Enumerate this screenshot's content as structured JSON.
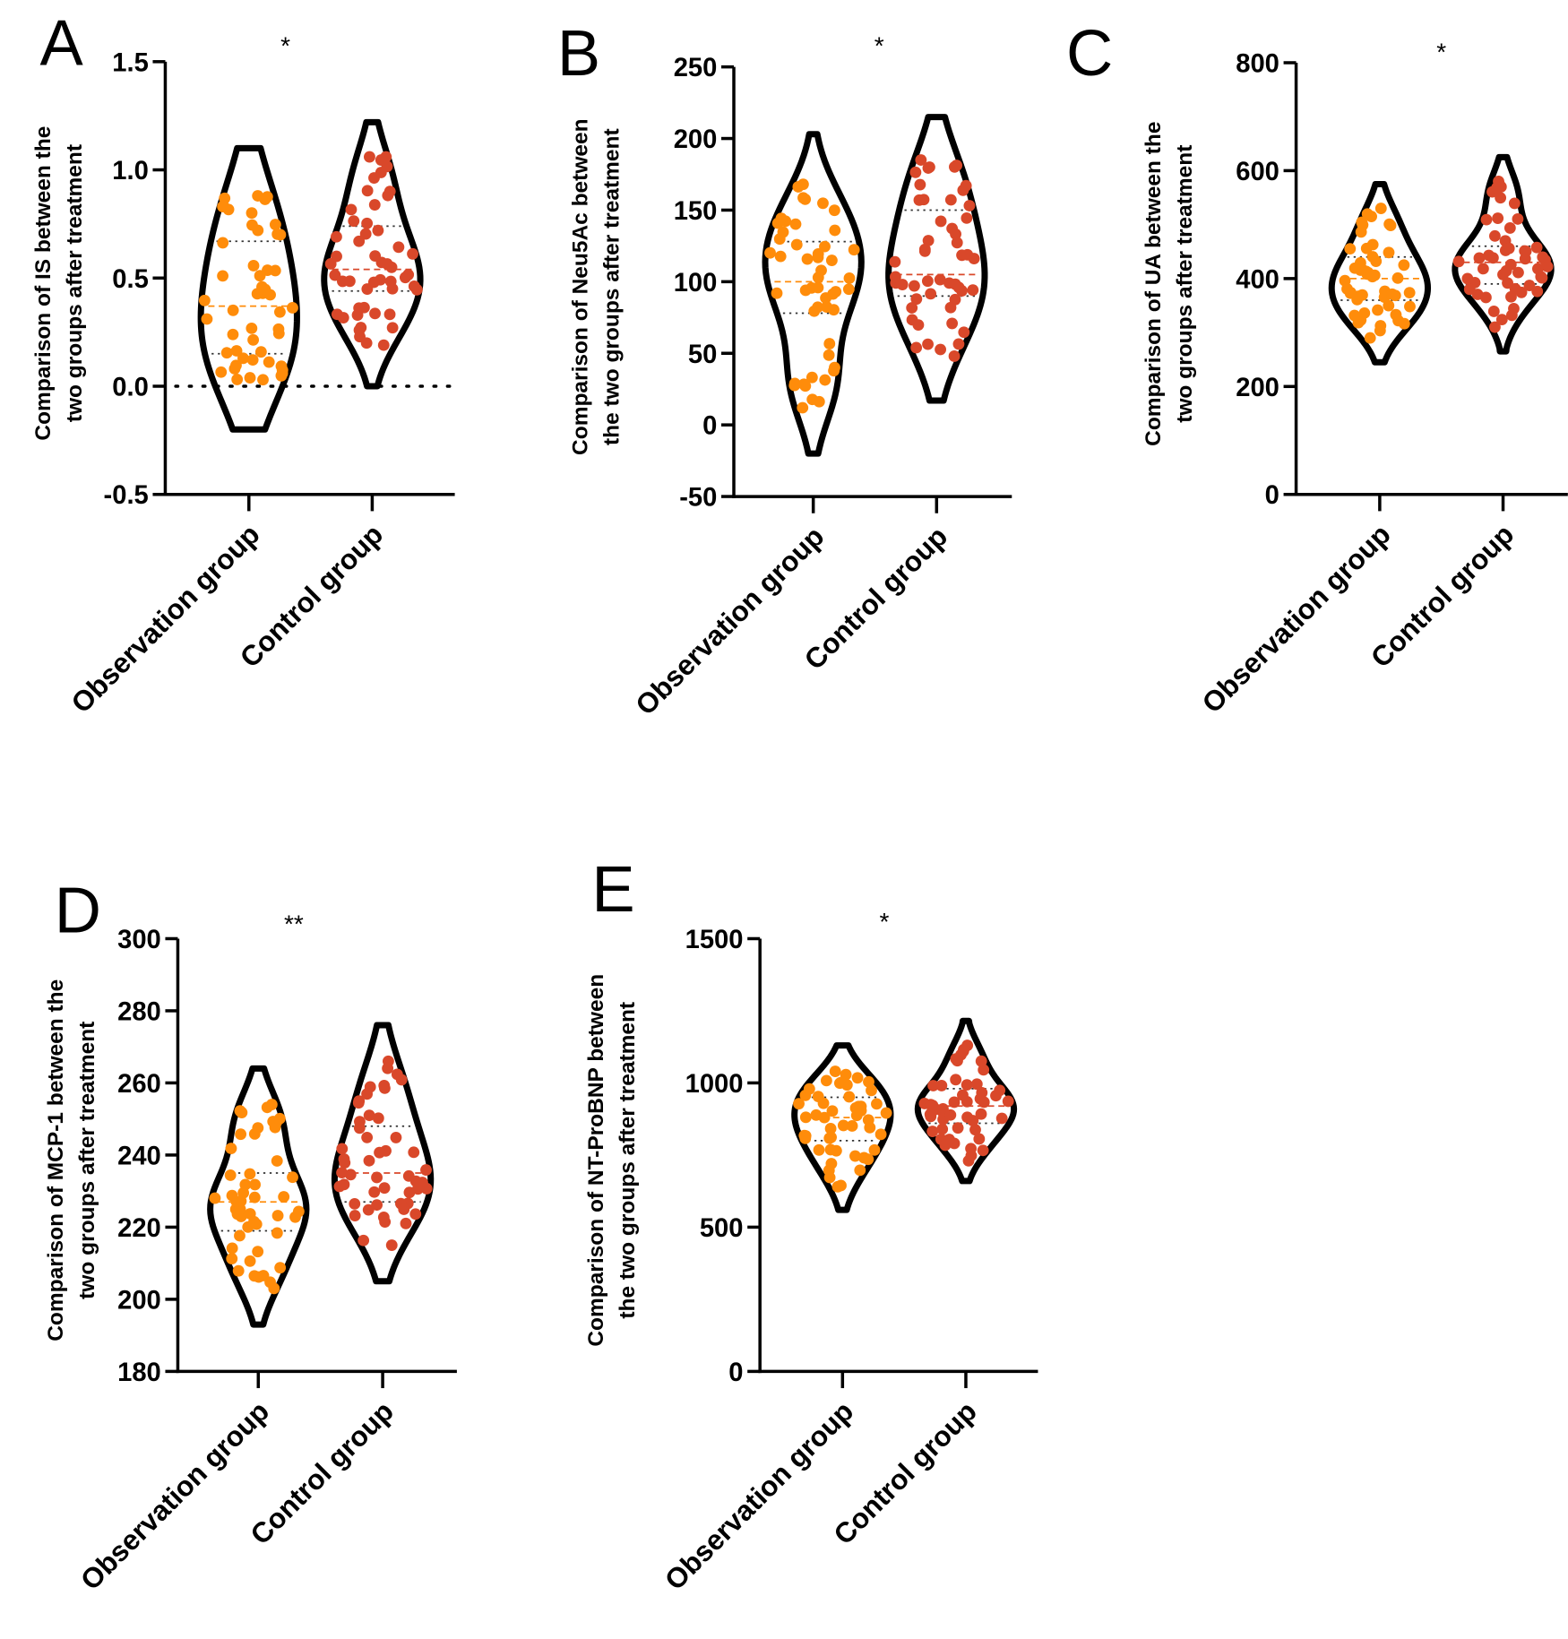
{
  "colors": {
    "observation": "#FF8C0A",
    "control": "#D9482A",
    "axis": "#000000"
  },
  "chart_data": [
    {
      "type": "violin",
      "panel": "A",
      "title": "",
      "significance": "*",
      "ylabel": [
        "Comparison of IS between the",
        "two groups after treatment"
      ],
      "categories": [
        "Observation group",
        "Control group"
      ],
      "ylim": [
        -0.5,
        1.5
      ],
      "yticks": [
        -0.5,
        0.0,
        0.5,
        1.0,
        1.5
      ],
      "tick_decimals": 1,
      "reference_line": 0,
      "series": [
        {
          "name": "Observation group",
          "n": 50,
          "min": 0.03,
          "q1": 0.15,
          "median": 0.37,
          "q3": 0.67,
          "max": 0.88,
          "violin_range": [
            -0.2,
            1.1
          ]
        },
        {
          "name": "Control group",
          "n": 50,
          "min": 0.19,
          "q1": 0.44,
          "median": 0.54,
          "q3": 0.74,
          "max": 1.06,
          "violin_range": [
            0.0,
            1.22
          ]
        }
      ]
    },
    {
      "type": "violin",
      "panel": "B",
      "title": "",
      "significance": "*",
      "ylabel": [
        "Comparison of Neu5Ac between",
        "the two groups after treatment"
      ],
      "categories": [
        "Observation group",
        "Control group"
      ],
      "ylim": [
        -50,
        250
      ],
      "yticks": [
        -50,
        0,
        50,
        100,
        150,
        200,
        250
      ],
      "tick_decimals": 0,
      "series": [
        {
          "name": "Observation group",
          "n": 50,
          "min": 12,
          "q1": 78,
          "median": 100,
          "q3": 128,
          "max": 168,
          "violin_range": [
            -20,
            203
          ]
        },
        {
          "name": "Control group",
          "n": 50,
          "min": 48,
          "q1": 90,
          "median": 105,
          "q3": 150,
          "max": 185,
          "violin_range": [
            17,
            215
          ]
        }
      ]
    },
    {
      "type": "violin",
      "panel": "C",
      "title": "",
      "significance": "*",
      "ylabel": [
        "Comparison of UA between the",
        "two groups after treatment"
      ],
      "categories": [
        "Observation group",
        "Control group"
      ],
      "ylim": [
        0,
        800
      ],
      "yticks": [
        0,
        200,
        400,
        600,
        800
      ],
      "tick_decimals": 0,
      "series": [
        {
          "name": "Observation group",
          "n": 50,
          "min": 290,
          "q1": 360,
          "median": 400,
          "q3": 440,
          "max": 530,
          "violin_range": [
            245,
            575
          ]
        },
        {
          "name": "Control group",
          "n": 50,
          "min": 310,
          "q1": 390,
          "median": 430,
          "q3": 460,
          "max": 580,
          "violin_range": [
            265,
            625
          ]
        }
      ]
    },
    {
      "type": "violin",
      "panel": "D",
      "title": "",
      "significance": "**",
      "ylabel": [
        "Comparison of MCP-1 between the",
        "two groups after treatment"
      ],
      "categories": [
        "Observation group",
        "Control group"
      ],
      "ylim": [
        180,
        300
      ],
      "yticks": [
        180,
        200,
        220,
        240,
        260,
        280,
        300
      ],
      "tick_decimals": 0,
      "series": [
        {
          "name": "Observation group",
          "n": 50,
          "min": 203,
          "q1": 219,
          "median": 227,
          "q3": 235,
          "max": 254,
          "violin_range": [
            193,
            264
          ]
        },
        {
          "name": "Control group",
          "n": 50,
          "min": 215,
          "q1": 227,
          "median": 235,
          "q3": 248,
          "max": 266,
          "violin_range": [
            205,
            276
          ]
        }
      ]
    },
    {
      "type": "violin",
      "panel": "E",
      "title": "",
      "significance": "*",
      "ylabel": [
        "Comparison of NT-ProBNP between",
        "the two groups after treatment"
      ],
      "categories": [
        "Observation group",
        "Control group"
      ],
      "ylim": [
        0,
        1500
      ],
      "yticks": [
        0,
        500,
        1000,
        1500
      ],
      "tick_decimals": 0,
      "series": [
        {
          "name": "Observation group",
          "n": 50,
          "min": 640,
          "q1": 800,
          "median": 880,
          "q3": 950,
          "max": 1040,
          "violin_range": [
            560,
            1130
          ]
        },
        {
          "name": "Control group",
          "n": 50,
          "min": 730,
          "q1": 860,
          "median": 920,
          "q3": 980,
          "max": 1130,
          "violin_range": [
            660,
            1215
          ]
        }
      ]
    }
  ]
}
